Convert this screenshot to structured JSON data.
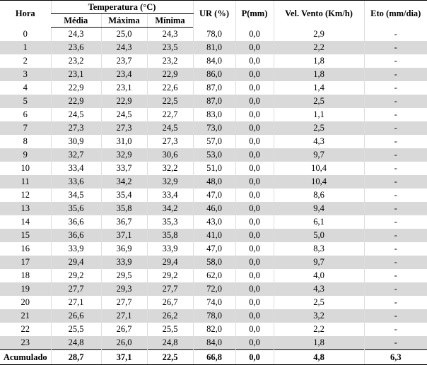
{
  "header": {
    "hora": "Hora",
    "temperatura": "Temperatura (°C)",
    "media": "Média",
    "maxima": "Máxima",
    "minima": "Mínima",
    "ur": "UR (%)",
    "p": "P(mm)",
    "vento": "Vel. Vento (Km/h)",
    "eto": "Eto (mm/dia)"
  },
  "rows": [
    [
      "0",
      "24,3",
      "25,0",
      "24,3",
      "78,0",
      "0,0",
      "2,9",
      "-"
    ],
    [
      "1",
      "23,6",
      "24,3",
      "23,5",
      "81,0",
      "0,0",
      "2,2",
      "-"
    ],
    [
      "2",
      "23,2",
      "23,7",
      "23,2",
      "84,0",
      "0,0",
      "1,8",
      "-"
    ],
    [
      "3",
      "23,1",
      "23,4",
      "22,9",
      "86,0",
      "0,0",
      "1,8",
      "-"
    ],
    [
      "4",
      "22,9",
      "23,1",
      "22,6",
      "87,0",
      "0,0",
      "1,4",
      "-"
    ],
    [
      "5",
      "22,9",
      "22,9",
      "22,5",
      "87,0",
      "0,0",
      "2,5",
      "-"
    ],
    [
      "6",
      "24,5",
      "24,5",
      "22,7",
      "83,0",
      "0,0",
      "1,1",
      "-"
    ],
    [
      "7",
      "27,3",
      "27,3",
      "24,5",
      "73,0",
      "0,0",
      "2,5",
      "-"
    ],
    [
      "8",
      "30,9",
      "31,0",
      "27,3",
      "57,0",
      "0,0",
      "4,3",
      "-"
    ],
    [
      "9",
      "32,7",
      "32,9",
      "30,6",
      "53,0",
      "0,0",
      "9,7",
      "-"
    ],
    [
      "10",
      "33,4",
      "33,7",
      "32,2",
      "51,0",
      "0,0",
      "10,4",
      "-"
    ],
    [
      "11",
      "33,6",
      "34,2",
      "32,9",
      "48,0",
      "0,0",
      "10,4",
      "-"
    ],
    [
      "12",
      "34,5",
      "35,4",
      "33,4",
      "47,0",
      "0,0",
      "8,6",
      "-"
    ],
    [
      "13",
      "35,6",
      "35,8",
      "34,2",
      "46,0",
      "0,0",
      "9,4",
      "-"
    ],
    [
      "14",
      "36,6",
      "36,7",
      "35,3",
      "43,0",
      "0,0",
      "6,1",
      "-"
    ],
    [
      "15",
      "36,6",
      "37,1",
      "35,8",
      "41,0",
      "0,0",
      "5,0",
      "-"
    ],
    [
      "16",
      "33,9",
      "36,9",
      "33,9",
      "47,0",
      "0,0",
      "8,3",
      "-"
    ],
    [
      "17",
      "29,4",
      "33,9",
      "29,4",
      "58,0",
      "0,0",
      "9,7",
      "-"
    ],
    [
      "18",
      "29,2",
      "29,5",
      "29,2",
      "62,0",
      "0,0",
      "4,0",
      "-"
    ],
    [
      "19",
      "27,7",
      "29,3",
      "27,7",
      "72,0",
      "0,0",
      "4,3",
      "-"
    ],
    [
      "20",
      "27,1",
      "27,7",
      "26,7",
      "74,0",
      "0,0",
      "2,5",
      "-"
    ],
    [
      "21",
      "26,6",
      "27,1",
      "26,2",
      "78,0",
      "0,0",
      "3,2",
      "-"
    ],
    [
      "22",
      "25,5",
      "26,7",
      "25,5",
      "82,0",
      "0,0",
      "2,2",
      "-"
    ],
    [
      "23",
      "24,8",
      "26,0",
      "24,8",
      "84,0",
      "0,0",
      "1,8",
      "-"
    ]
  ],
  "total": [
    "Acumulado",
    "28,7",
    "37,1",
    "22,5",
    "66,8",
    "0,0",
    "4,8",
    "6,3"
  ]
}
